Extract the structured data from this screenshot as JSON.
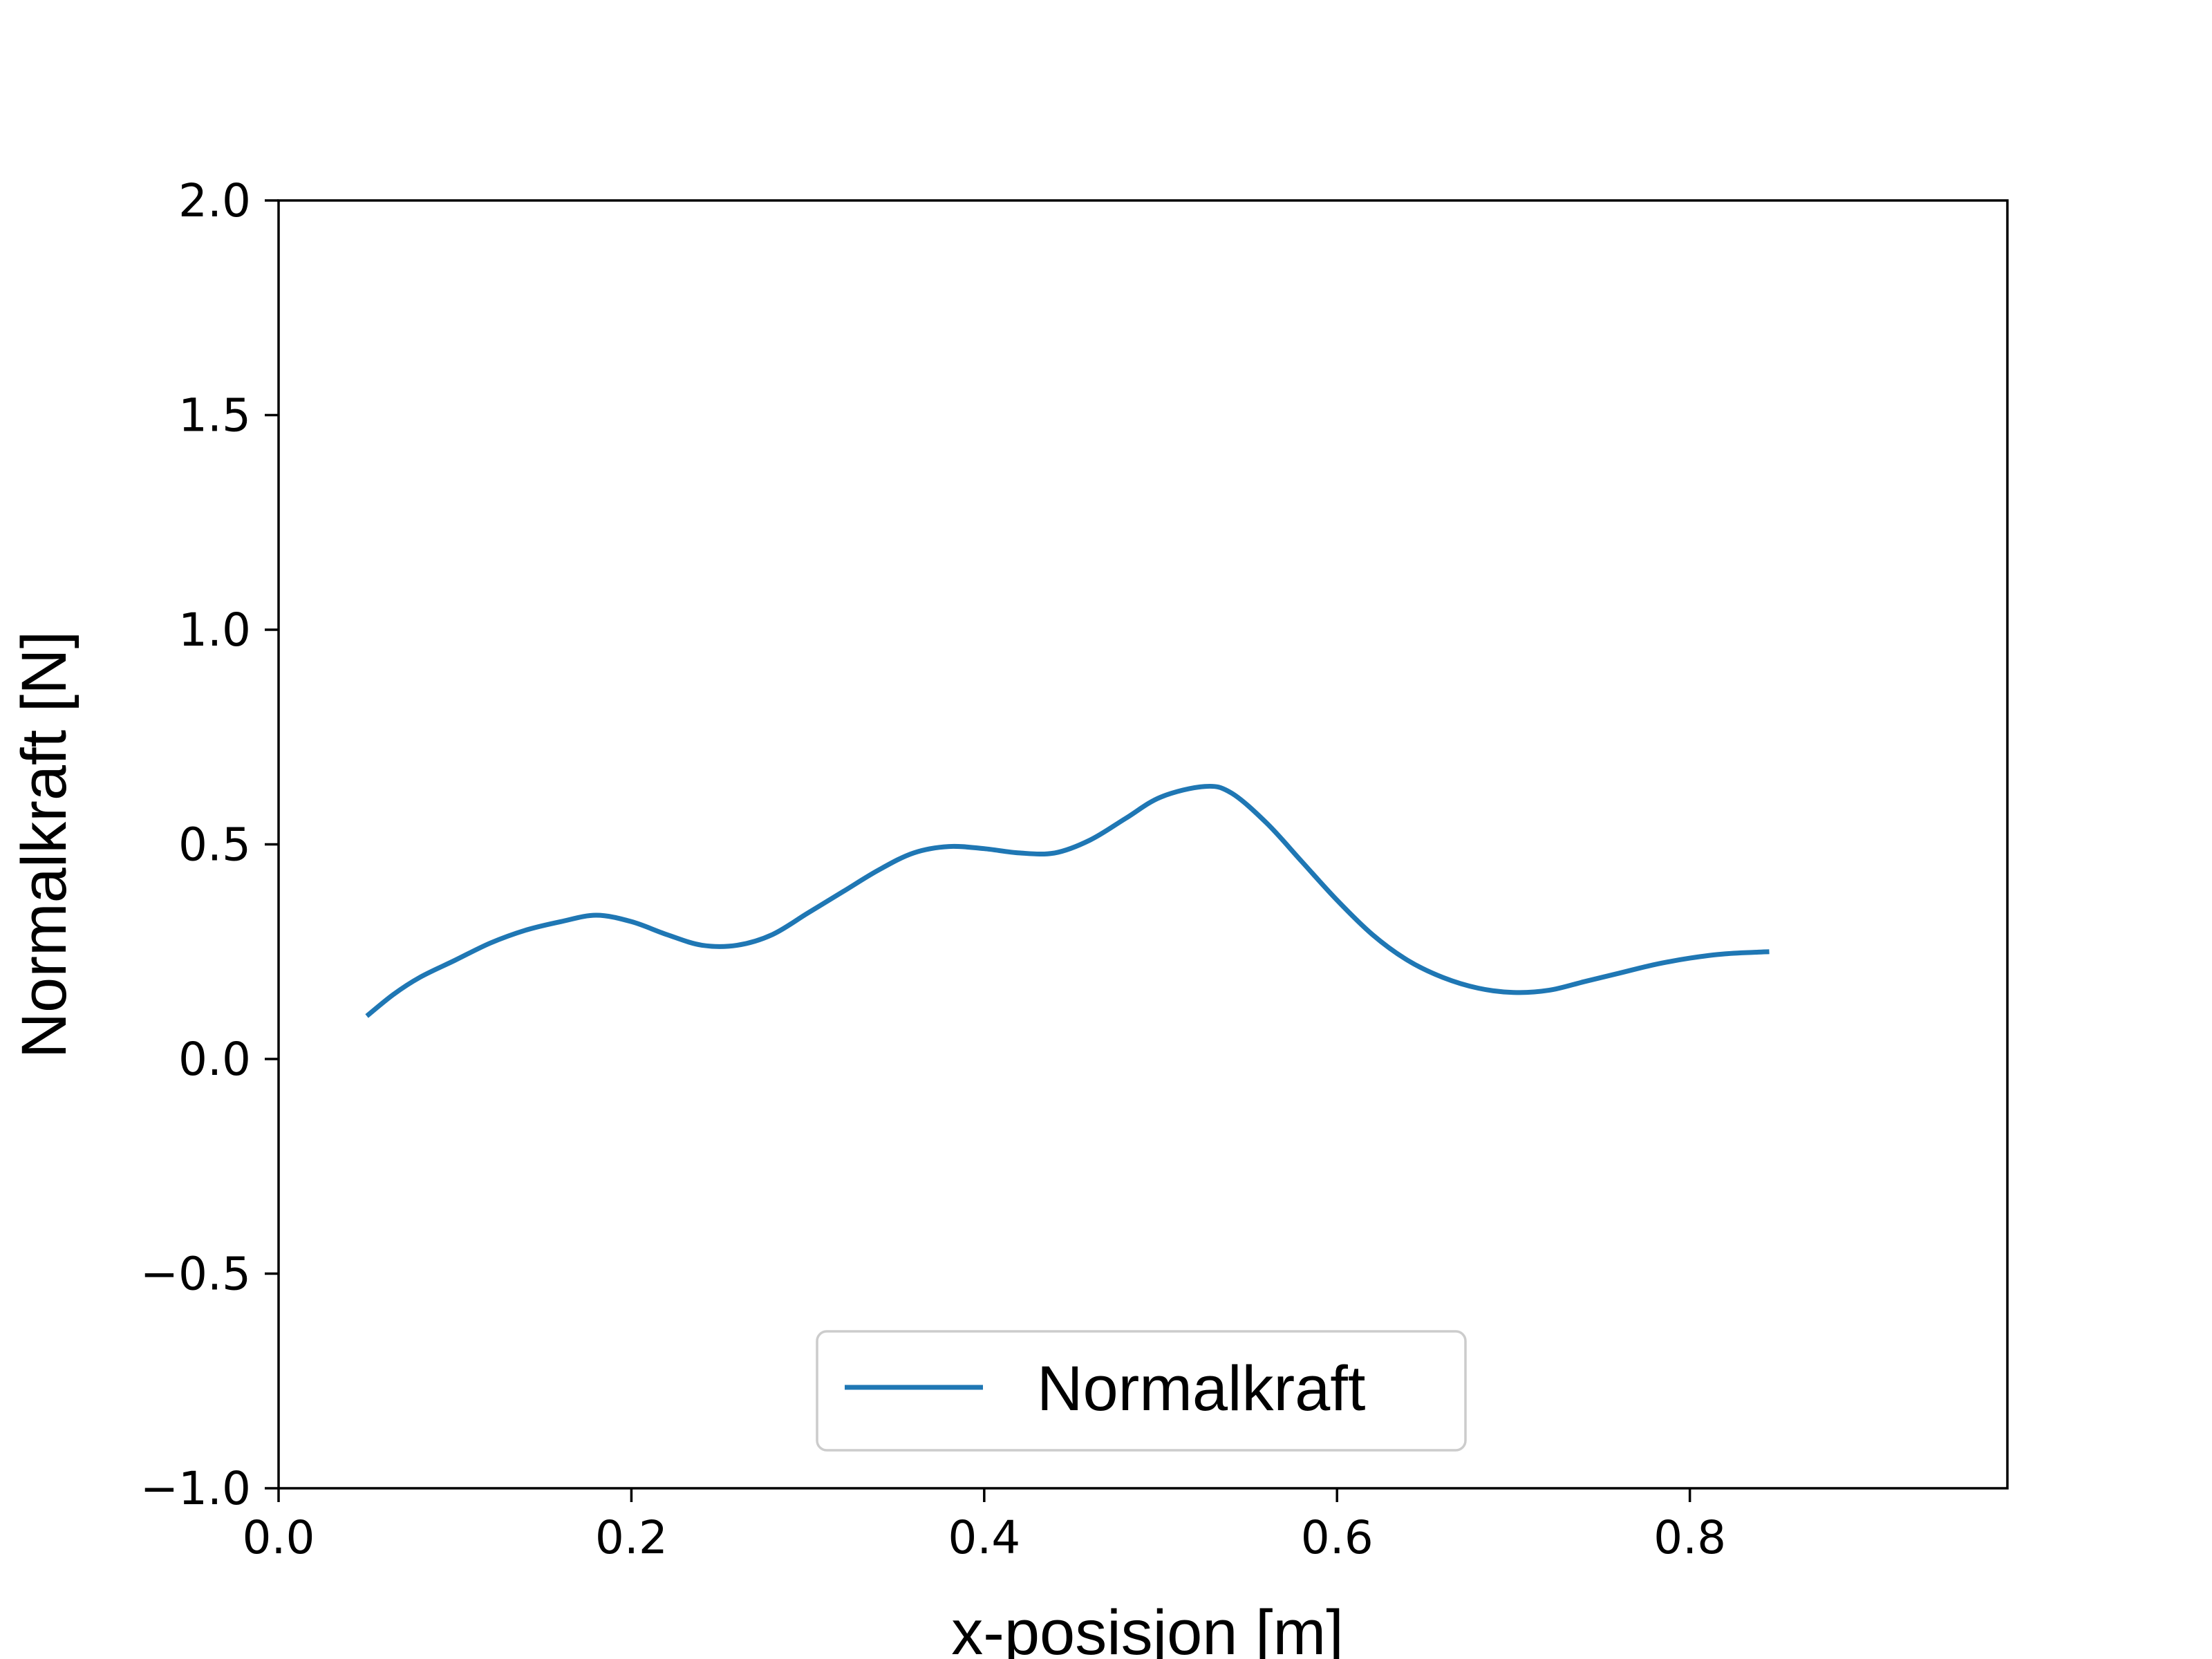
{
  "chart_data": {
    "type": "line",
    "xlabel": "x-posisjon [m]",
    "ylabel": "Normalkraft [N]",
    "xlim": [
      0.0,
      0.98
    ],
    "ylim": [
      -1.0,
      2.0
    ],
    "x_ticks": [
      0.0,
      0.2,
      0.4,
      0.6,
      0.8
    ],
    "x_tick_labels": [
      "0.0",
      "0.2",
      "0.4",
      "0.6",
      "0.8"
    ],
    "y_ticks": [
      -1.0,
      -0.5,
      0.0,
      0.5,
      1.0,
      1.5,
      2.0
    ],
    "y_tick_labels": [
      "−1.0",
      "−0.5",
      "0.0",
      "0.5",
      "1.0",
      "1.5",
      "2.0"
    ],
    "grid": false,
    "legend_position": "lower center",
    "series": [
      {
        "name": "Normalkraft",
        "color": "#1f77b4",
        "x": [
          0.05,
          0.065,
          0.08,
          0.1,
          0.12,
          0.14,
          0.16,
          0.18,
          0.2,
          0.22,
          0.24,
          0.26,
          0.28,
          0.3,
          0.32,
          0.34,
          0.36,
          0.38,
          0.4,
          0.42,
          0.44,
          0.46,
          0.48,
          0.5,
          0.525,
          0.54,
          0.56,
          0.58,
          0.6,
          0.62,
          0.64,
          0.66,
          0.68,
          0.7,
          0.72,
          0.74,
          0.76,
          0.78,
          0.8,
          0.82,
          0.845
        ],
        "y": [
          0.1,
          0.15,
          0.19,
          0.23,
          0.27,
          0.3,
          0.32,
          0.335,
          0.32,
          0.29,
          0.265,
          0.265,
          0.29,
          0.34,
          0.39,
          0.44,
          0.48,
          0.495,
          0.49,
          0.48,
          0.48,
          0.51,
          0.56,
          0.61,
          0.635,
          0.62,
          0.55,
          0.46,
          0.37,
          0.29,
          0.23,
          0.19,
          0.165,
          0.155,
          0.16,
          0.18,
          0.2,
          0.22,
          0.235,
          0.245,
          0.25
        ]
      }
    ]
  }
}
